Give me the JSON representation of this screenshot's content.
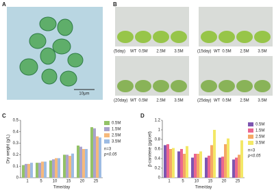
{
  "panels": {
    "a": {
      "label": "A",
      "scale": "10μm"
    },
    "b": {
      "label": "B",
      "photos": [
        {
          "day": "(5day)",
          "labels": [
            "WT",
            "0.5M",
            "2.5M",
            "3.5M"
          ]
        },
        {
          "day": "(15day)",
          "labels": [
            "WT",
            "0.5M",
            "2.5M",
            "3.5M"
          ]
        },
        {
          "day": "(20day)",
          "labels": [
            "WT",
            "0.5M",
            "2.5M",
            "3.5M"
          ]
        },
        {
          "day": "(25day)",
          "labels": [
            "WT",
            "0.5M",
            "2.5M",
            "3.5M"
          ]
        }
      ]
    }
  },
  "chart_data": [
    {
      "type": "bar",
      "panel": "C",
      "y_label": "Dry weight (g/L)",
      "x_label": "Time/day",
      "categories": [
        "1",
        "5",
        "10",
        "15",
        "20",
        "25"
      ],
      "series": [
        {
          "name": "0.5M",
          "color": "#93c267",
          "values": [
            0.11,
            0.13,
            0.15,
            0.2,
            0.28,
            0.44
          ]
        },
        {
          "name": "1.5M",
          "color": "#aaa3cc",
          "values": [
            0.12,
            0.13,
            0.16,
            0.2,
            0.27,
            0.43
          ]
        },
        {
          "name": "2.5M",
          "color": "#f6b97c",
          "values": [
            0.12,
            0.14,
            0.17,
            0.19,
            0.25,
            0.36
          ]
        },
        {
          "name": "3.5M",
          "color": "#9dbbe3",
          "values": [
            0.13,
            0.14,
            0.17,
            0.21,
            0.25,
            0.35
          ]
        }
      ],
      "ylim": [
        0,
        0.5
      ],
      "yticks": [
        0,
        0.1,
        0.2,
        0.3,
        0.4,
        0.5
      ],
      "notes": [
        "n=3",
        "p<0.05"
      ]
    },
    {
      "type": "bar",
      "panel": "D",
      "y_label": "β-carotene (pg/cell)",
      "x_label": "Time/day",
      "categories": [
        "1",
        "5",
        "10",
        "15",
        "20",
        "25"
      ],
      "series": [
        {
          "name": "0.5M",
          "color": "#7d55b0",
          "values": [
            0.68,
            0.55,
            0.42,
            0.42,
            0.42,
            0.38
          ]
        },
        {
          "name": "1.5M",
          "color": "#ea6690",
          "values": [
            0.7,
            0.6,
            0.5,
            0.46,
            0.44,
            0.42
          ]
        },
        {
          "name": "2.5M",
          "color": "#f5a866",
          "values": [
            0.6,
            0.5,
            0.5,
            0.68,
            0.7,
            0.48
          ]
        },
        {
          "name": "3.5M",
          "color": "#f3e867",
          "values": [
            0.62,
            0.66,
            0.55,
            1.0,
            0.82,
            0.78
          ]
        }
      ],
      "ylim": [
        0,
        1.2
      ],
      "yticks": [
        0,
        0.2,
        0.4,
        0.6,
        0.8,
        1.0,
        1.2
      ],
      "notes": [
        "n=3",
        "p<0.05"
      ]
    }
  ]
}
